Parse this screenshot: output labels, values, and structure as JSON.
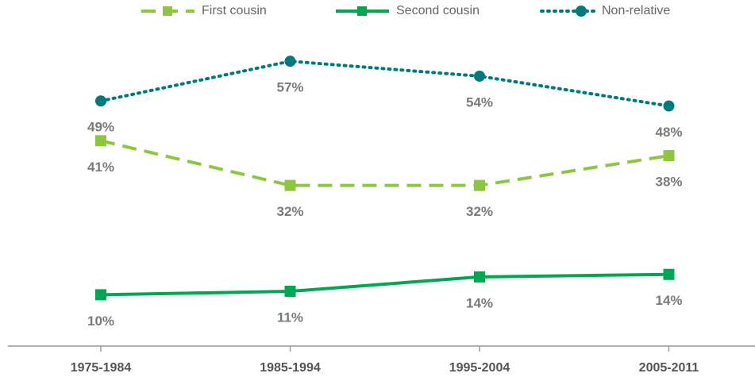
{
  "chart_data": {
    "type": "line",
    "categories": [
      "1975-1984",
      "1985-1994",
      "1995-2004",
      "2005-2011"
    ],
    "series": [
      {
        "name": "First cousin",
        "color": "#8dc63f",
        "style": "dashed",
        "marker": "square",
        "values": [
          41,
          32,
          32,
          38
        ],
        "value_labels": [
          "41%",
          "32%",
          "32%",
          "38%"
        ]
      },
      {
        "name": "Second cousin",
        "color": "#00a651",
        "style": "solid",
        "marker": "square",
        "values": [
          10,
          10.7,
          13.6,
          14.1
        ],
        "value_labels": [
          "10%",
          "11%",
          "14%",
          "14%"
        ]
      },
      {
        "name": "Non-relative",
        "color": "#007a7e",
        "style": "dotted",
        "marker": "circle",
        "values": [
          49,
          57,
          54,
          48
        ],
        "value_labels": [
          "49%",
          "57%",
          "54%",
          "48%"
        ]
      }
    ],
    "ylim": [
      0,
      60
    ],
    "legend": "top"
  }
}
